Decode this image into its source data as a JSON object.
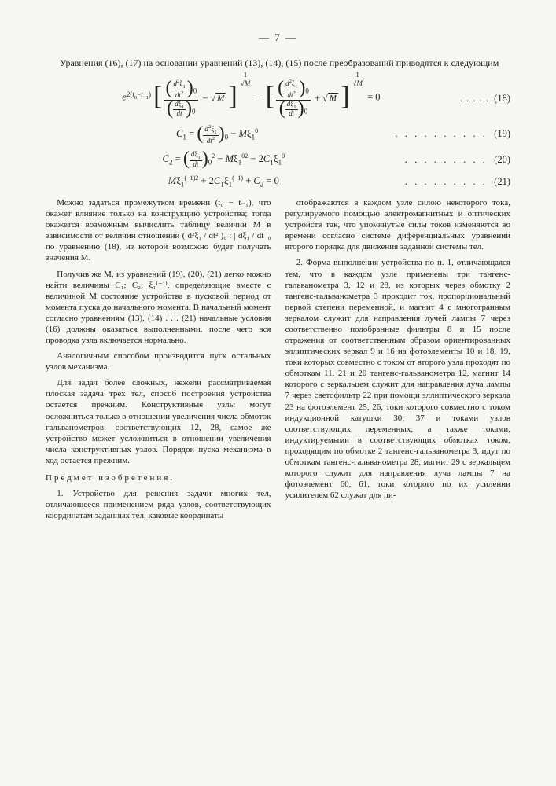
{
  "page": {
    "number_display": "— 7 —",
    "intro": "Уравнения (16), (17) на основании уравнений (13), (14), (15) после преобразований приводятся к следующим",
    "eq18": {
      "dots": " . . . . . ",
      "num": "(18)"
    },
    "eq19": {
      "body": "C₁ = ( d²ξ₁ / dt² )₀ − Mξ₁⁰",
      "dots": "  .  .  .  .  .  .  .  .  .  .  ",
      "num": "(19)"
    },
    "eq20": {
      "body": "C₂ = ( dξ₁ / dt )₀² − Mξ₁⁰² − 2C₁ξ₁⁰",
      "dots": " .  .  .  .  .  .  .  .  .  ",
      "num": "(20)"
    },
    "eq21": {
      "body": "Mξ₁⁽⁻¹⁾² + 2C₁ξ₁⁽⁻¹⁾ + C₂ = 0",
      "dots": " .  .  .  .  .  .  .  .  .  ",
      "num": "(21)"
    },
    "left": {
      "p1": "Можно задаться промежутком времени (t₀ − t₋₁), что окажет влияние только на конструкцию устройства; тогда окажется возможным вычислить таблицу величин M в зависимости от величин отношений ( d²ξ₁ / dt² )₀ : | dξ₁ / dt |₀ по уравнению (18), из которой возможно будет получать значения M.",
      "p2": "Получив же M, из уравнений (19), (20), (21) легко можно найти величины C₁; C₂; ξ₁⁽⁻¹⁾, определяющие вместе с величиной M состояние устройства в пусковой период от момента пуска до начального момента. В начальный момент согласно уравнениям (13), (14) . . . (21) начальные условия (16) должны оказаться выполненными, после чего вся проводка узла включается нормально.",
      "p3": "Аналогичным способом производится пуск остальных узлов механизма.",
      "p4": "Для задач более сложных, нежели рассматриваемая плоская задача трех тел, способ построения устройства остается прежним. Конструктивные узлы могут осложниться только в отношении увеличения числа обмоток гальванометров, соответствующих 12, 28, самое же устройство может усложниться в отношении увеличения числа конструктивных узлов. Порядок пуска механизма в ход остается прежним.",
      "head": "Предмет изобретения.",
      "p5": "1. Устройство для решения задачи многих тел, отличающееся применением ряда узлов, соответствующих координатам заданных тел, каковые координаты"
    },
    "right": {
      "p1": "отображаются в каждом узле силою некоторого тока, регулируемого помощью электромагнитных и оптических устройств так, что упомянутые силы токов изменяются во времени согласно системе диференциальных уравнений второго порядка для движения заданной системы тел.",
      "p2": "2. Форма выполнения устройства по п. 1, отличающаяся тем, что в каждом узле применены три тангенс-гальванометра 3, 12 и 28, из которых через обмотку 2 тангенс-гальванометра 3 проходит ток, пропорциональный первой степени переменной, и магнит 4 с многогранным зеркалом служит для направления лучей лампы 7 через соответственно подобранные фильтры 8 и 15 после отражения от соответственным образом ориентированных эллиптических зеркал 9 и 16 на фотоэлементы 10 и 18, 19, токи которых совместно с током от второго узла проходят по обмоткам 11, 21 и 20 тангенс-гальванометра 12, магнит 14 которого с зеркальцем служит для направления луча лампы 7 через светофильтр 22 при помощи эллиптического зеркала 23 на фотоэлемент 25, 26, токи которого совместно с током индукционной катушки 30, 37 и токами узлов соответствующих переменных, а также токами, индуктируемыми в соответствующих обмотках током, проходящим по обмотке 2 тангенс-гальванометра 3, идут по обмоткам тангенс-гальванометра 28, магнит 29 с зеркальцем которого служит для направления луча лампы 7 на фотоэлемент 60, 61, токи которого по их усилении усилителем 62 служат для пи-"
    }
  }
}
